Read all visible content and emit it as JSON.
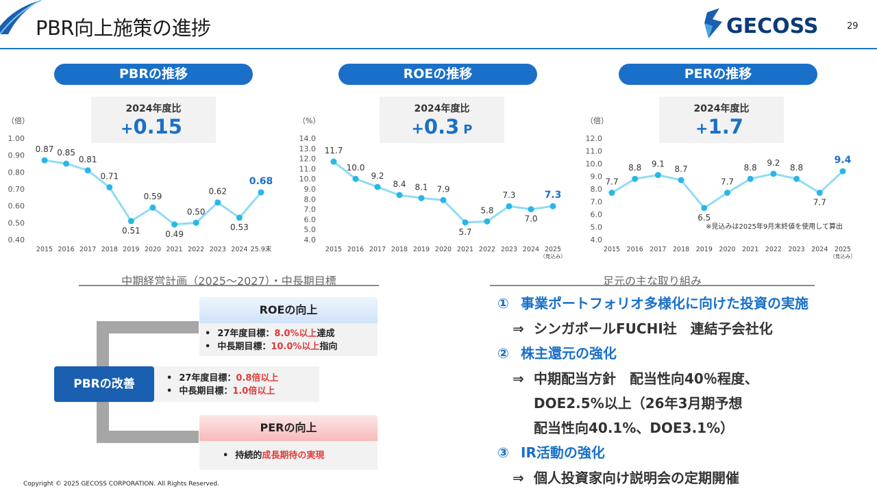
{
  "header": {
    "title": "PBR向上施策の進捗",
    "page_number": "29",
    "logo_text": "GECOSS",
    "accent_color": "#1a70c8"
  },
  "panels": [
    {
      "pill": "PBRの推移",
      "stat_label": "2024年度比",
      "stat_sign": "+",
      "stat_value": "0.15",
      "stat_unit": ""
    },
    {
      "pill": "ROEの推移",
      "stat_label": "2024年度比",
      "stat_sign": "+",
      "stat_value": "0.3",
      "stat_unit": "P"
    },
    {
      "pill": "PERの推移",
      "stat_label": "2024年度比",
      "stat_sign": "+",
      "stat_value": "1.7",
      "stat_unit": ""
    }
  ],
  "chart_data": [
    {
      "type": "line",
      "unit_label": "（倍）",
      "categories": [
        "2015",
        "2016",
        "2017",
        "2018",
        "2019",
        "2020",
        "2021",
        "2022",
        "2023",
        "2024",
        "25.9末"
      ],
      "category_sublabels": [
        "",
        "",
        "",
        "",
        "",
        "",
        "",
        "",
        "",
        "",
        ""
      ],
      "values": [
        0.87,
        0.85,
        0.81,
        0.71,
        0.51,
        0.59,
        0.49,
        0.5,
        0.62,
        0.53,
        0.68
      ],
      "value_labels": [
        "0.87",
        "0.85",
        "0.81",
        "0.71",
        "0.51",
        "0.59",
        "0.49",
        "0.50",
        "0.62",
        "0.53",
        "0.68"
      ],
      "y_ticks": [
        "0.40",
        "0.50",
        "0.60",
        "0.70",
        "0.80",
        "0.90",
        "1.00"
      ],
      "ylim": [
        0.4,
        1.0
      ],
      "line_color": "#8fdcf2",
      "highlight_last": true
    },
    {
      "type": "line",
      "unit_label": "（%）",
      "categories": [
        "2015",
        "2016",
        "2017",
        "2018",
        "2019",
        "2020",
        "2021",
        "2022",
        "2023",
        "2024",
        "2025"
      ],
      "category_sublabels": [
        "",
        "",
        "",
        "",
        "",
        "",
        "",
        "",
        "",
        "",
        "（見込み）"
      ],
      "values": [
        11.7,
        10.0,
        9.2,
        8.4,
        8.1,
        7.9,
        5.7,
        5.8,
        7.3,
        7.0,
        7.3
      ],
      "value_labels": [
        "11.7",
        "10.0",
        "9.2",
        "8.4",
        "8.1",
        "7.9",
        "5.7",
        "5.8",
        "7.3",
        "7.0",
        "7.3"
      ],
      "y_ticks": [
        "4.0",
        "5.0",
        "6.0",
        "7.0",
        "8.0",
        "9.0",
        "10.0",
        "11.0",
        "12.0",
        "13.0",
        "14.0"
      ],
      "ylim": [
        4.0,
        14.0
      ],
      "line_color": "#8fdcf2",
      "highlight_last": true
    },
    {
      "type": "line",
      "unit_label": "（倍）",
      "categories": [
        "2015",
        "2016",
        "2017",
        "2018",
        "2019",
        "2020",
        "2021",
        "2022",
        "2023",
        "2024",
        "2025"
      ],
      "category_sublabels": [
        "",
        "",
        "",
        "",
        "",
        "",
        "",
        "",
        "",
        "",
        "（見込み）"
      ],
      "values": [
        7.7,
        8.8,
        9.1,
        8.7,
        6.5,
        7.7,
        8.8,
        9.2,
        8.8,
        7.7,
        9.4
      ],
      "value_labels": [
        "7.7",
        "8.8",
        "9.1",
        "8.7",
        "6.5",
        "7.7",
        "8.8",
        "9.2",
        "8.8",
        "7.7",
        "9.4"
      ],
      "y_ticks": [
        "4.0",
        "5.0",
        "6.0",
        "7.0",
        "8.0",
        "9.0",
        "10.0",
        "11.0",
        "12.0"
      ],
      "ylim": [
        4.0,
        12.0
      ],
      "line_color": "#8fdcf2",
      "highlight_last": true,
      "note": "※見込みは2025年9月末終値を使用して算出"
    }
  ],
  "plan": {
    "heading": "中期経営計画（2025〜2027）・中長期目標",
    "pbr_box": "PBRの改善",
    "pbr_goals": [
      {
        "prefix": "27年度目標：",
        "value": "0.8倍以上",
        "suffix": ""
      },
      {
        "prefix": "中長期目標：",
        "value": "1.0倍以上",
        "suffix": ""
      }
    ],
    "roe_head": "ROEの向上",
    "roe_goals": [
      {
        "prefix": "27年度目標：",
        "value": "8.0%以上",
        "suffix": "達成"
      },
      {
        "prefix": "中長期目標：",
        "value": "10.0%以上",
        "suffix": "指向"
      }
    ],
    "per_head": "PERの向上",
    "per_goal": {
      "prefix": "持続的",
      "value": "成長期待の実現"
    }
  },
  "initiatives": {
    "heading": "足元の主な取り組み",
    "items": [
      {
        "num": "①",
        "title": "事業ポートフォリオ多様化に向けた投資の実施",
        "lines": [
          "シンガポールFUCHI社　連結子会社化"
        ]
      },
      {
        "num": "②",
        "title": "株主還元の強化",
        "lines": [
          "中期配当方針　配当性向40％程度、",
          "DOE2.5%以上（26年3月期予想",
          "配当性向40.1%、DOE3.1%）"
        ]
      },
      {
        "num": "③",
        "title": "IR活動の強化",
        "lines": [
          "個人投資家向け説明会の定期開催"
        ]
      }
    ],
    "arrow": "⇒"
  },
  "footer": {
    "copyright": "Copyright © 2025 GECOSS CORPORATION. All Rights Reserved."
  }
}
